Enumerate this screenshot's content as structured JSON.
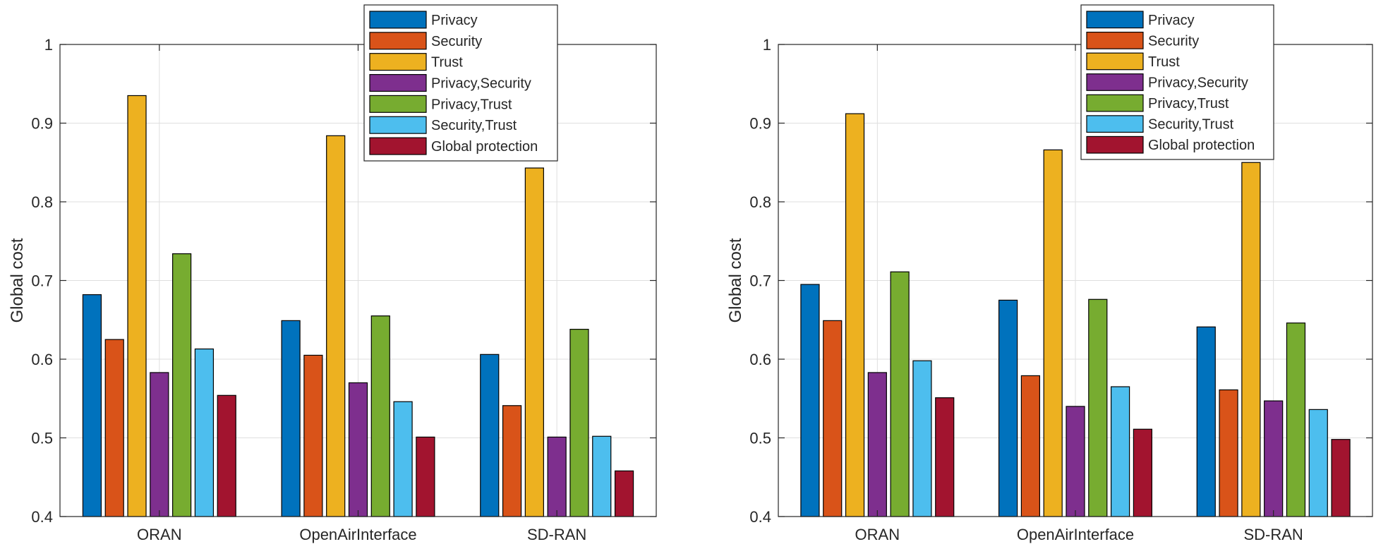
{
  "chart_data": [
    {
      "type": "bar",
      "title": "",
      "xlabel": "",
      "ylabel": "Global cost",
      "ylim": [
        0.4,
        1.0
      ],
      "yticks": [
        "0.4",
        "0.5",
        "0.6",
        "0.7",
        "0.8",
        "0.9",
        "1"
      ],
      "grid": true,
      "legend_position": "top-right",
      "categories": [
        "ORAN",
        "OpenAirInterface",
        "SD-RAN"
      ],
      "series": [
        {
          "name": "Privacy",
          "color": "#0072BD",
          "values": [
            0.682,
            0.649,
            0.606
          ]
        },
        {
          "name": "Security",
          "color": "#D95319",
          "values": [
            0.625,
            0.605,
            0.541
          ]
        },
        {
          "name": "Trust",
          "color": "#EDB120",
          "values": [
            0.935,
            0.884,
            0.843
          ]
        },
        {
          "name": "Privacy,Security",
          "color": "#7E2F8E",
          "values": [
            0.583,
            0.57,
            0.501
          ]
        },
        {
          "name": "Privacy,Trust",
          "color": "#77AC30",
          "values": [
            0.734,
            0.655,
            0.638
          ]
        },
        {
          "name": "Security,Trust",
          "color": "#4DBEEE",
          "values": [
            0.613,
            0.546,
            0.502
          ]
        },
        {
          "name": "Global protection",
          "color": "#A2142F",
          "values": [
            0.554,
            0.501,
            0.458
          ]
        }
      ]
    },
    {
      "type": "bar",
      "title": "",
      "xlabel": "",
      "ylabel": "Global cost",
      "ylim": [
        0.4,
        1.0
      ],
      "yticks": [
        "0.4",
        "0.5",
        "0.6",
        "0.7",
        "0.8",
        "0.9",
        "1"
      ],
      "grid": true,
      "legend_position": "top-right",
      "categories": [
        "ORAN",
        "OpenAirInterface",
        "SD-RAN"
      ],
      "series": [
        {
          "name": "Privacy",
          "color": "#0072BD",
          "values": [
            0.695,
            0.675,
            0.641
          ]
        },
        {
          "name": "Security",
          "color": "#D95319",
          "values": [
            0.649,
            0.579,
            0.561
          ]
        },
        {
          "name": "Trust",
          "color": "#EDB120",
          "values": [
            0.912,
            0.866,
            0.85
          ]
        },
        {
          "name": "Privacy,Security",
          "color": "#7E2F8E",
          "values": [
            0.583,
            0.54,
            0.547
          ]
        },
        {
          "name": "Privacy,Trust",
          "color": "#77AC30",
          "values": [
            0.711,
            0.676,
            0.646
          ]
        },
        {
          "name": "Security,Trust",
          "color": "#4DBEEE",
          "values": [
            0.598,
            0.565,
            0.536
          ]
        },
        {
          "name": "Global protection",
          "color": "#A2142F",
          "values": [
            0.551,
            0.511,
            0.498
          ]
        }
      ]
    }
  ]
}
